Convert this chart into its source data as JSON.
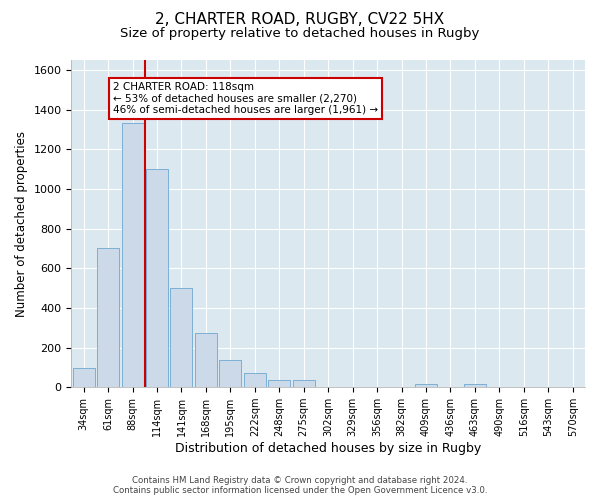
{
  "title_line1": "2, CHARTER ROAD, RUGBY, CV22 5HX",
  "title_line2": "Size of property relative to detached houses in Rugby",
  "xlabel": "Distribution of detached houses by size in Rugby",
  "ylabel": "Number of detached properties",
  "bar_labels": [
    "34sqm",
    "61sqm",
    "88sqm",
    "114sqm",
    "141sqm",
    "168sqm",
    "195sqm",
    "222sqm",
    "248sqm",
    "275sqm",
    "302sqm",
    "329sqm",
    "356sqm",
    "382sqm",
    "409sqm",
    "436sqm",
    "463sqm",
    "490sqm",
    "516sqm",
    "543sqm",
    "570sqm"
  ],
  "bar_values": [
    95,
    700,
    1330,
    1100,
    500,
    275,
    135,
    70,
    35,
    35,
    0,
    0,
    0,
    0,
    15,
    0,
    15,
    0,
    0,
    0,
    0
  ],
  "bar_color": "#ccd9e8",
  "bar_edge_color": "#7bafd4",
  "ylim": [
    0,
    1650
  ],
  "yticks": [
    0,
    200,
    400,
    600,
    800,
    1000,
    1200,
    1400,
    1600
  ],
  "property_line_x": 2.5,
  "property_line_color": "#cc0000",
  "annotation_text": "2 CHARTER ROAD: 118sqm\n← 53% of detached houses are smaller (2,270)\n46% of semi-detached houses are larger (1,961) →",
  "annotation_box_facecolor": "#ffffff",
  "annotation_box_edgecolor": "#cc0000",
  "bg_color": "#dce8f0",
  "grid_color": "#ffffff",
  "footer_line1": "Contains HM Land Registry data © Crown copyright and database right 2024.",
  "footer_line2": "Contains public sector information licensed under the Open Government Licence v3.0.",
  "fig_facecolor": "#ffffff",
  "title_fontsize": 11,
  "subtitle_fontsize": 9.5,
  "tick_fontsize": 7,
  "ylabel_fontsize": 8.5,
  "xlabel_fontsize": 9
}
